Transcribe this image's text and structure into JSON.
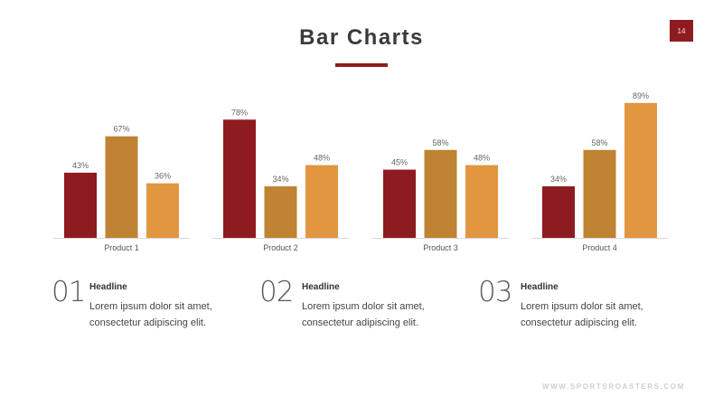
{
  "slide": {
    "title": "Bar Charts",
    "page_number": "14",
    "footer": "WWW.SPORTSROASTERS.COM"
  },
  "colors": {
    "accent": "#8e1b1f",
    "series": [
      "#8e1b1f",
      "#c08333",
      "#e29640"
    ]
  },
  "chart_data": {
    "type": "bar",
    "categories": [
      "Product 1",
      "Product 2",
      "Product 3",
      "Product 4"
    ],
    "series": [
      {
        "values": [
          43,
          78,
          45,
          34
        ]
      },
      {
        "values": [
          67,
          34,
          58,
          58
        ]
      },
      {
        "values": [
          36,
          48,
          48,
          89
        ]
      }
    ],
    "value_suffix": "%",
    "ylim": [
      0,
      100
    ],
    "grid": false,
    "legend": "none"
  },
  "items": [
    {
      "number": "01",
      "headline": "Headline",
      "text": "Lorem ipsum dolor sit amet,\nconsectetur adipiscing elit."
    },
    {
      "number": "02",
      "headline": "Headline",
      "text": "Lorem ipsum dolor sit amet,\nconsectetur adipiscing elit."
    },
    {
      "number": "03",
      "headline": "Headline",
      "text": "Lorem ipsum dolor sit amet,\nconsectetur adipiscing elit."
    }
  ]
}
